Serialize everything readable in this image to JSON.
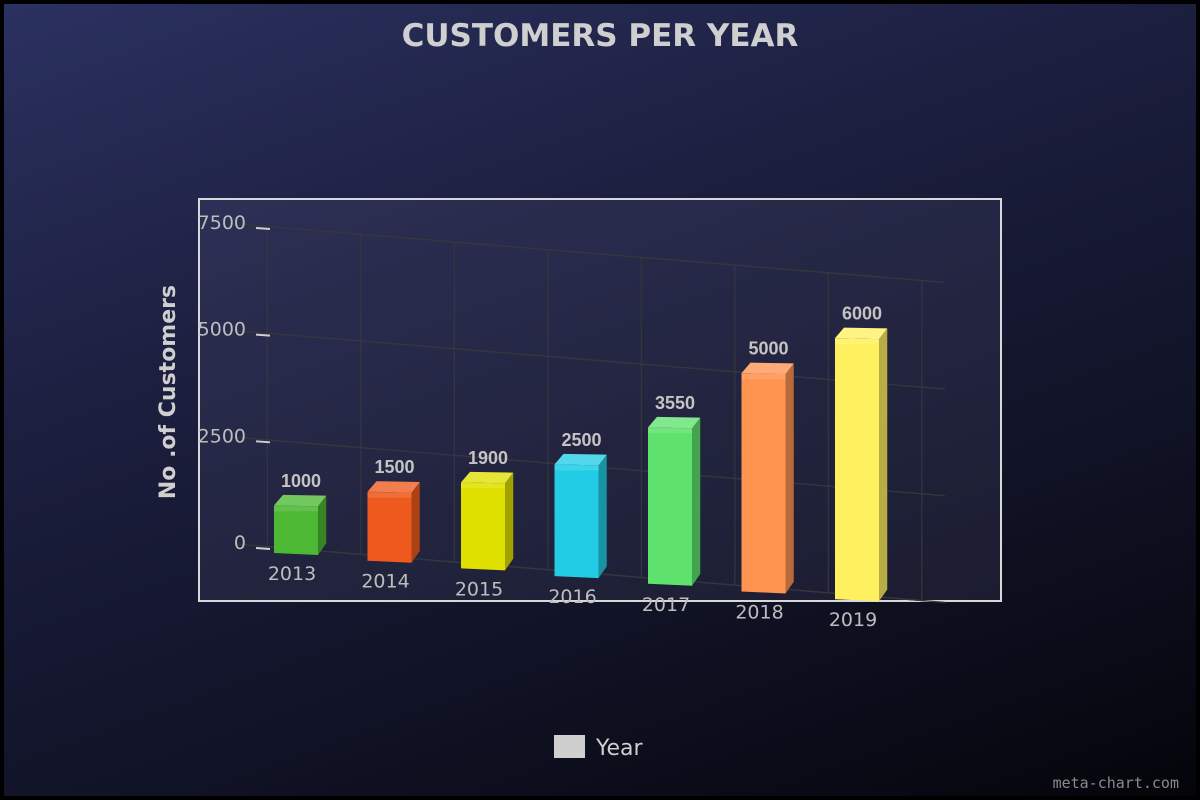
{
  "chart_data": {
    "type": "bar",
    "title": "CUSTOMERS PER YEAR",
    "xlabel": "",
    "ylabel": "No .of Customers",
    "categories": [
      "2013",
      "2014",
      "2015",
      "2016",
      "2017",
      "2018",
      "2019"
    ],
    "series": [
      {
        "name": "Year",
        "values": [
          1000,
          1500,
          1900,
          2500,
          3550,
          5000,
          6000
        ]
      }
    ],
    "bar_colors": [
      "#4cb833",
      "#ee5a1d",
      "#dfdf00",
      "#22cce4",
      "#5fe26d",
      "#ff9350",
      "#fff060"
    ],
    "ylim": [
      0,
      7500
    ],
    "yticks": [
      "0",
      "2500",
      "5000",
      "7500"
    ],
    "yticks_values": [
      0,
      2500,
      5000,
      7500
    ],
    "data_labels": [
      "1000",
      "1500",
      "1900",
      "2500",
      "3550",
      "5000",
      "6000"
    ],
    "grid": true,
    "three_d": true,
    "legend": {
      "position": "bottom",
      "label": "Year",
      "swatch_color": "#cfcfcf"
    }
  },
  "watermark": "meta-chart.com"
}
